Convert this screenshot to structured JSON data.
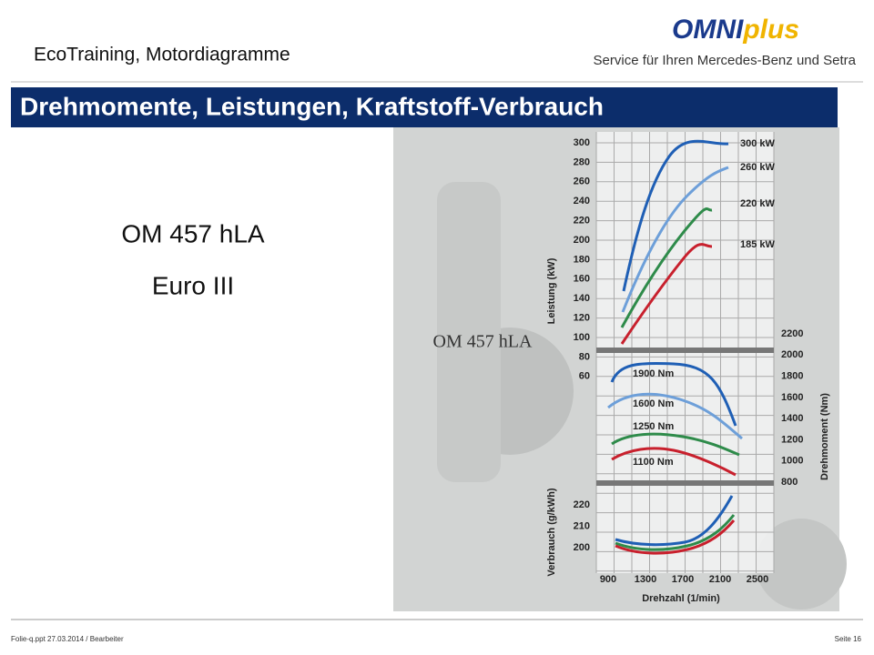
{
  "header": {
    "subtitle": "EcoTraining, Motordiagramme",
    "logo_main": "OMNI",
    "logo_accent": "plus",
    "logo_tagline": "Service für Ihren Mercedes-Benz und Setra",
    "title": "Drehmomente, Leistungen, Kraftstoff-Verbrauch"
  },
  "body": {
    "engine": "OM 457 hLA",
    "norm": "Euro III"
  },
  "figure": {
    "engine_label": "OM 457 hLA",
    "power_axis": "Leistung (kW)",
    "power_ticks": [
      "300",
      "280",
      "260",
      "240",
      "220",
      "200",
      "180",
      "160",
      "140",
      "120",
      "100",
      "80",
      "60"
    ],
    "torque_axis": "Drehmoment (Nm)",
    "torque_ticks": [
      "2200",
      "2000",
      "1800",
      "1600",
      "1400",
      "1200",
      "1000",
      "800"
    ],
    "consumption_axis": "Verbrauch (g/kWh)",
    "consumption_ticks": [
      "220",
      "210",
      "200"
    ],
    "speed_axis": "Drehzahl (1/min)",
    "speed_ticks": [
      "900",
      "1300",
      "1700",
      "2100",
      "2500"
    ],
    "power_labels": [
      "300 kW",
      "260 kW",
      "220 kW",
      "185 kW"
    ],
    "torque_labels": [
      "1900 Nm",
      "1600 Nm",
      "1250 Nm",
      "1100 Nm"
    ]
  },
  "footer": {
    "file": "Folie-q.ppt   27.03.2014   / Bearbeiter",
    "page": "Seite 16"
  }
}
